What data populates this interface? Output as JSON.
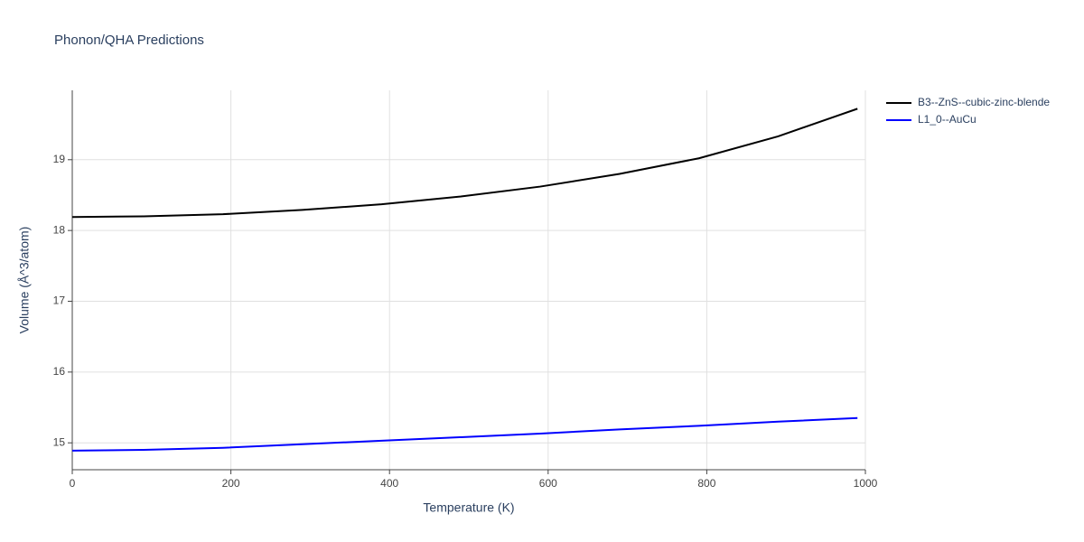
{
  "chart_data": {
    "type": "line",
    "title": "Phonon/QHA Predictions",
    "x_label": "Temperature (K)",
    "y_label": "Volume (Å^3/atom)",
    "x": [
      0,
      90,
      190,
      290,
      390,
      490,
      590,
      690,
      790,
      890,
      990
    ],
    "series": [
      {
        "name": "B3--ZnS--cubic-zinc-blende",
        "color": "#000000",
        "values": [
          18.19,
          18.2,
          18.23,
          18.29,
          18.37,
          18.48,
          18.62,
          18.8,
          19.02,
          19.33,
          19.72
        ]
      },
      {
        "name": "L1_0--AuCu",
        "color": "#0000ff",
        "values": [
          14.89,
          14.9,
          14.93,
          14.98,
          15.03,
          15.08,
          15.13,
          15.19,
          15.24,
          15.3,
          15.35
        ]
      }
    ],
    "xlim": [
      0,
      1000
    ],
    "xticks": [
      0,
      200,
      400,
      600,
      800,
      1000
    ],
    "ylim": [
      14.62,
      19.98
    ],
    "yticks": [
      15,
      16,
      17,
      18,
      19
    ],
    "grid": true,
    "legend": "outside-right"
  }
}
